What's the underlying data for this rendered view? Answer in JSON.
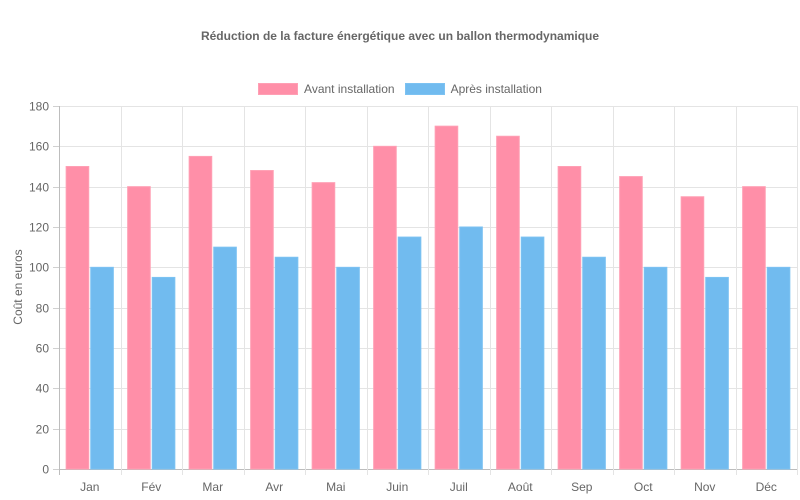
{
  "chart_data": {
    "type": "bar",
    "title": "Réduction de la facture énergétique avec un ballon thermodynamique",
    "xlabel": "",
    "ylabel": "Coût en euros",
    "ylim": [
      0,
      180
    ],
    "yticks": [
      0,
      20,
      40,
      60,
      80,
      100,
      120,
      140,
      160,
      180
    ],
    "grid": true,
    "legend_position": "top",
    "categories": [
      "Jan",
      "Fév",
      "Mar",
      "Avr",
      "Mai",
      "Juin",
      "Juil",
      "Août",
      "Sep",
      "Oct",
      "Nov",
      "Déc"
    ],
    "series": [
      {
        "name": "Avant installation",
        "color": "#ff8fa8",
        "border": "#ff9fb4",
        "values": [
          150,
          140,
          155,
          148,
          142,
          160,
          170,
          165,
          150,
          145,
          135,
          140
        ]
      },
      {
        "name": "Après installation",
        "color": "#71bbef",
        "border": "#7cc2f2",
        "values": [
          100,
          95,
          110,
          105,
          100,
          115,
          120,
          115,
          105,
          100,
          95,
          100
        ]
      }
    ]
  }
}
